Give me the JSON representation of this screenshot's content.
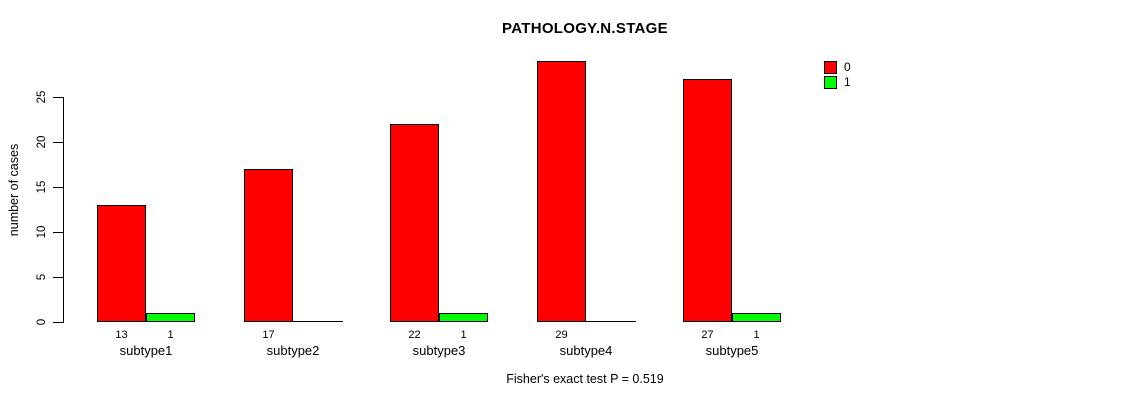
{
  "title": "PATHOLOGY.N.STAGE",
  "y_axis_title": "number of cases",
  "footer": "Fisher's exact test P = 0.519",
  "legend": {
    "entries": [
      {
        "label": "0",
        "color": "#FF0000"
      },
      {
        "label": "1",
        "color": "#00FF00"
      }
    ]
  },
  "chart_data": {
    "type": "bar",
    "title": "PATHOLOGY.N.STAGE",
    "xlabel": "",
    "ylabel": "number of cases",
    "categories": [
      "subtype1",
      "subtype2",
      "subtype3",
      "subtype4",
      "subtype5"
    ],
    "series": [
      {
        "name": "0",
        "color": "#FF0000",
        "values": [
          13,
          17,
          22,
          29,
          27
        ]
      },
      {
        "name": "1",
        "color": "#00FF00",
        "values": [
          1,
          0,
          1,
          0,
          1
        ]
      }
    ],
    "bar_value_labels": {
      "shown_for_nonzero_only": true,
      "series_0": [
        13,
        17,
        22,
        29,
        27
      ],
      "series_1": [
        1,
        null,
        1,
        null,
        1
      ]
    },
    "yticks": [
      0,
      5,
      10,
      15,
      20,
      25
    ],
    "ylim": [
      0,
      29
    ],
    "grid": false,
    "legend_position": "top-right",
    "annotation": "Fisher's exact test P = 0.519"
  }
}
